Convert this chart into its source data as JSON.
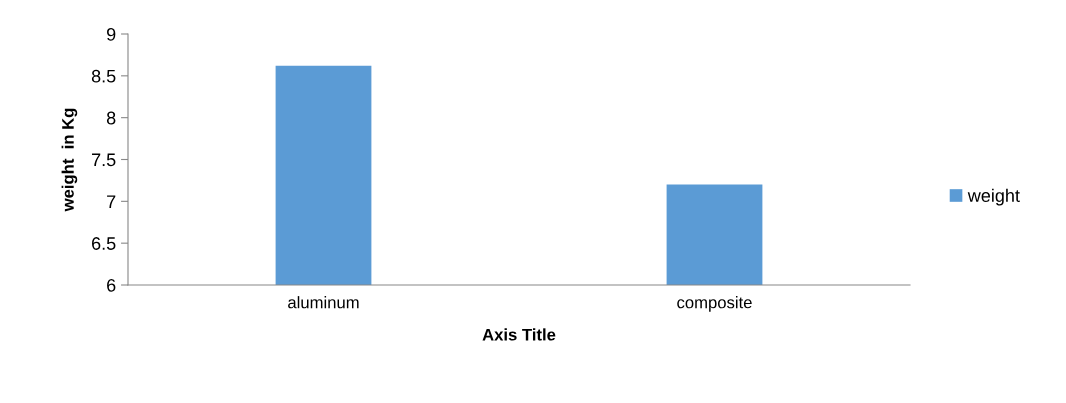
{
  "chart_data": {
    "type": "bar",
    "xlabel": "Axis Title",
    "ylabel": "weight  in Kg",
    "categories": [
      "aluminum",
      "composite"
    ],
    "series": [
      {
        "name": "weight",
        "color": "#5b9bd5",
        "values": [
          8.62,
          7.2
        ]
      }
    ],
    "ylim": [
      6,
      9
    ],
    "yticks": [
      6,
      6.5,
      7,
      7.5,
      8,
      8.5,
      9
    ],
    "grid": false,
    "legend": "right"
  }
}
